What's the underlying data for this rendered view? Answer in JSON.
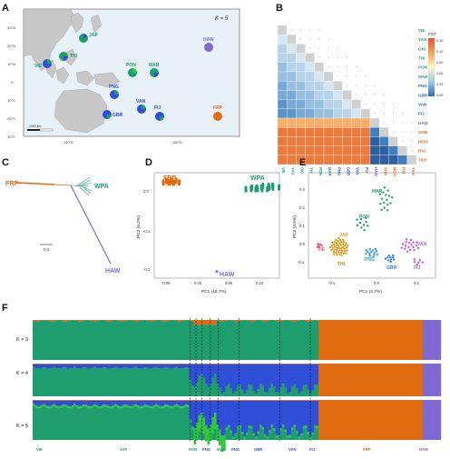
{
  "panels": {
    "A": "A",
    "B": "B",
    "C": "C",
    "D": "D",
    "E": "E",
    "F": "F"
  },
  "map": {
    "k_label": "K = 5",
    "lat_ticks": [
      "30°N",
      "20°N",
      "10°N",
      "0°",
      "10°S",
      "20°S",
      "30°S"
    ],
    "lon_ticks": [
      "140°E",
      "160°E"
    ],
    "scale_label": "1000 km",
    "sites": [
      {
        "code": "JAP"
      },
      {
        "code": "VIE"
      },
      {
        "code": "THI"
      },
      {
        "code": "PON"
      },
      {
        "code": "MAR"
      },
      {
        "code": "HAW"
      },
      {
        "code": "PNG"
      },
      {
        "code": "GBR"
      },
      {
        "code": "VAN"
      },
      {
        "code": "FIJ"
      },
      {
        "code": "FRP"
      }
    ]
  },
  "heatmap": {
    "rows": [
      "VIE",
      "YAG",
      "OKI",
      "THI",
      "PON",
      "MAR",
      "PNG",
      "GBR",
      "VAN",
      "FIJ",
      "HAW",
      "SOB",
      "MOO",
      "RAI",
      "TKH"
    ],
    "colorbar_title": "FST",
    "colorbar_ticks": [
      "0.15",
      "0.12",
      "0.09",
      "0.06",
      "0.03",
      "0.00"
    ],
    "row_colors": {
      "group1": "#2a9d8f",
      "group2": "#3a60c8",
      "group3": "#7b68c8",
      "group4": "#e07020"
    }
  },
  "tree": {
    "labels": {
      "frp": "FRP",
      "wpa": "WPA",
      "haw": "HAW"
    },
    "scale": "0.1"
  },
  "pca_d": {
    "xlabel": "PC1 (16.7%)",
    "ylabel": "PC2 (6.2%)",
    "xticks": [
      "-0.05",
      "0.00",
      "0.05",
      "0.10"
    ],
    "yticks": [
      "0.0",
      "-0.1",
      "-0.2"
    ],
    "labels": {
      "frp": "FRP",
      "wpa": "WPA",
      "haw": "HAW"
    }
  },
  "pca_e": {
    "xlabel": "PC1 (4.7%)",
    "ylabel": "PC2 (3.5%)",
    "xticks": [
      "-0.1",
      "0.0",
      "0.1"
    ],
    "yticks": [
      "0.3",
      "0.2",
      "0.1",
      "0.0",
      "-0.1"
    ],
    "labels": {
      "mar": "MAR",
      "pon": "PON",
      "jap": "JAP",
      "vie": "VIE",
      "thi": "THI",
      "png": "PNG",
      "gbr": "GBR",
      "van": "VAN",
      "fij": "FIJ"
    }
  },
  "structure": {
    "rows": [
      "K = 3",
      "K = 4",
      "K = 5"
    ],
    "pops": [
      "VIE",
      "JAP",
      "PON",
      "PNG",
      "MAR",
      "PNG",
      "GBR",
      "VAN",
      "FIJ",
      "FRP",
      "HAW"
    ],
    "colors": {
      "green": "#1e9e6e",
      "orange": "#e06a10",
      "purple": "#7e6ad0",
      "blue": "#2f4fd8",
      "lime": "#2ec83a"
    }
  },
  "chart_data": {
    "type": "scatter",
    "xlabel": "PC1 (16.7%)",
    "ylabel": "PC2 (6.2%)",
    "series": [
      {
        "name": "FRP",
        "x": [
          -0.055,
          -0.05,
          -0.045
        ],
        "y": [
          0.02,
          0.025,
          0.02
        ]
      },
      {
        "name": "WPA",
        "x": [
          0.09,
          0.1,
          0.11,
          0.12,
          0.13
        ],
        "y": [
          0.0,
          0.005,
          0.0,
          0.01,
          0.005
        ]
      },
      {
        "name": "HAW",
        "x": [
          0.03
        ],
        "y": [
          -0.25
        ]
      }
    ]
  }
}
